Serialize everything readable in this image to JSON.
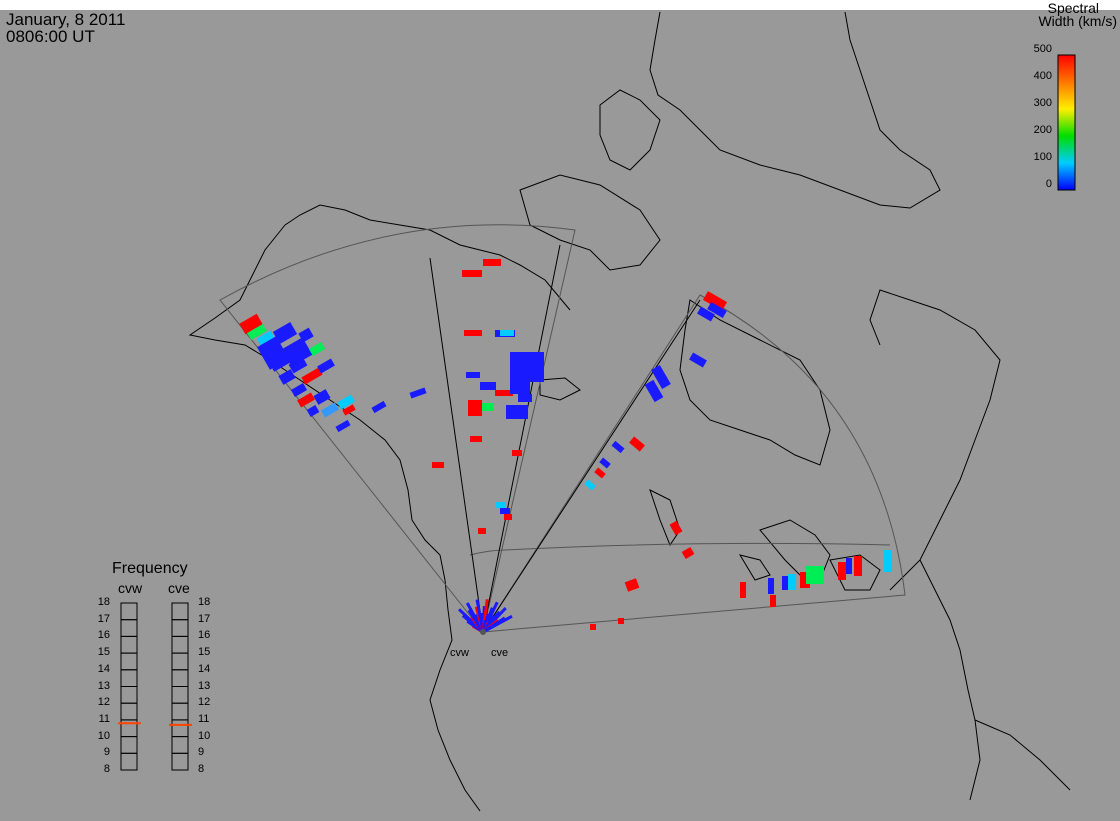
{
  "header": {
    "date": "January, 8 2011",
    "time": "0806:00 UT"
  },
  "colorbar": {
    "title_line1": "Spectral",
    "title_line2": "Width (km/s)",
    "ticks": [
      "500",
      "400",
      "300",
      "200",
      "100",
      "0"
    ],
    "min": 0,
    "max": 500
  },
  "frequency": {
    "title": "Frequency",
    "radars": [
      "cvw",
      "cve"
    ],
    "scale": [
      "18",
      "17",
      "16",
      "15",
      "14",
      "13",
      "12",
      "11",
      "10",
      "9",
      "8"
    ],
    "cvw_value": 10.8,
    "cve_value": 10.7,
    "indicator_color": "#ff4400"
  },
  "stations": [
    "cvw",
    "cve"
  ],
  "colors": {
    "background": "#999999",
    "map_lines": "#000000",
    "fov_lines": "#555555"
  }
}
